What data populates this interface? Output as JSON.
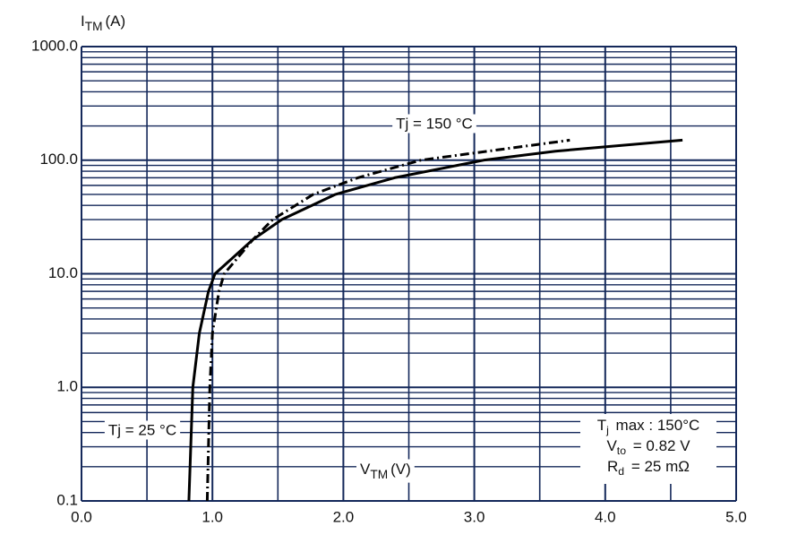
{
  "chart_data": {
    "type": "line",
    "y_label": {
      "main": "I",
      "sub": "TM",
      "rest": "(A)"
    },
    "x_label": {
      "main": "V",
      "sub": "TM",
      "rest": "(V)"
    },
    "log_y": true,
    "grid": true,
    "grid_color": "#14285a",
    "xlim": [
      0,
      5
    ],
    "ylim": [
      0.1,
      1000
    ],
    "xticks": [
      {
        "value": 0,
        "label": "0.0"
      },
      {
        "value": 1,
        "label": "1.0"
      },
      {
        "value": 2,
        "label": "2.0"
      },
      {
        "value": 3,
        "label": "3.0"
      },
      {
        "value": 4,
        "label": "4.0"
      },
      {
        "value": 5,
        "label": "5.0"
      }
    ],
    "yticks": [
      0.1,
      {
        "value": 1,
        "label": "1.0"
      },
      {
        "value": 10,
        "label": "10.0"
      },
      {
        "value": 100,
        "label": "100.0"
      },
      {
        "value": 1000,
        "label": "1000.0"
      }
    ],
    "xminor": [
      0.5,
      1.5,
      2.5,
      3.5,
      4.5
    ],
    "yminor": [
      0.2,
      0.3,
      0.4,
      0.5,
      0.6,
      0.7,
      0.8,
      0.9,
      2,
      3,
      4,
      5,
      6,
      7,
      8,
      9,
      20,
      30,
      40,
      50,
      60,
      70,
      80,
      90,
      200,
      300,
      400,
      500,
      600,
      700,
      800,
      900
    ],
    "series": [
      {
        "name": "Tj = 150 °C",
        "color": "#000000",
        "dash": "solid",
        "x": [
          0.82,
          0.85,
          0.9,
          0.97,
          1.02,
          1.31,
          1.53,
          1.94,
          2.39,
          3.07,
          3.62,
          4.59
        ],
        "values": [
          0.1,
          1,
          3,
          7,
          10,
          20,
          30,
          50,
          70,
          100,
          120,
          150
        ]
      },
      {
        "name": "Tj = 25 °C",
        "color": "#000000",
        "dash": "dashdot",
        "x": [
          0.96,
          0.98,
          1.0,
          1.05,
          1.09,
          1.31,
          1.46,
          1.77,
          2.11,
          2.59,
          3.73
        ],
        "values": [
          0.1,
          1,
          3,
          7,
          10,
          20,
          30,
          50,
          70,
          100,
          150
        ]
      }
    ],
    "info_box": [
      {
        "main": "T",
        "sub": "j",
        "rest": " max : 150°C"
      },
      {
        "main": "V",
        "sub": "to",
        "rest": " = 0.82 V"
      },
      {
        "main": "R",
        "sub": "d",
        "rest": " = 25 mΩ"
      }
    ]
  }
}
